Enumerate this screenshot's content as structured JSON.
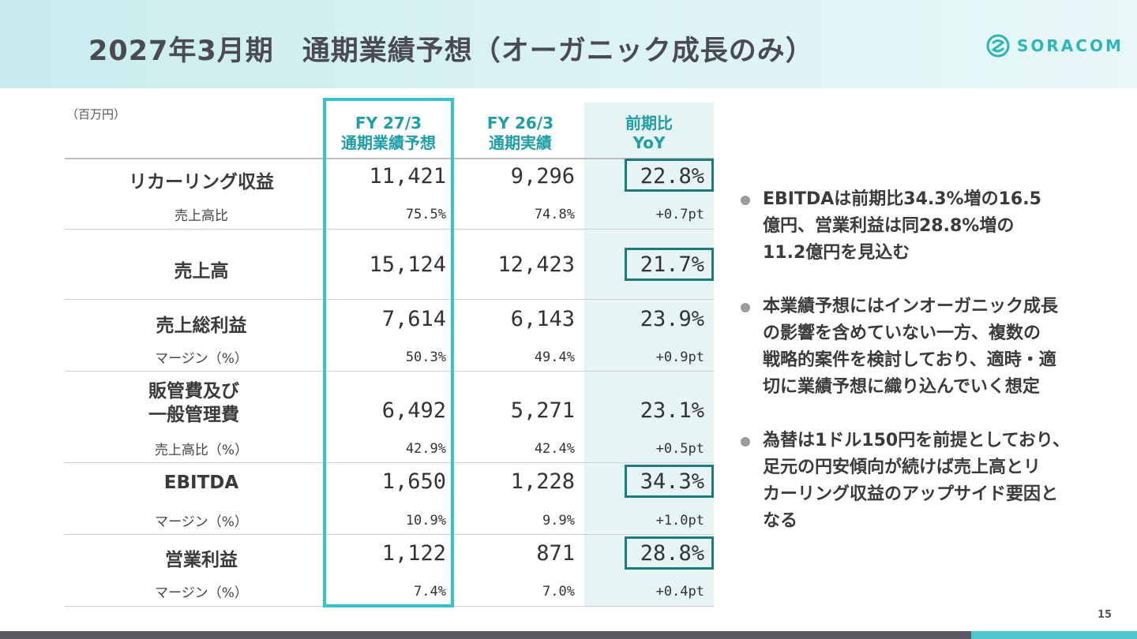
{
  "title": "2027年3月期　通期業績予想（オーガニック成長のみ）",
  "logo": {
    "text": "SORACOM",
    "icon": "soracom-logo-icon",
    "color": "#2fb5b8"
  },
  "unit": "（百万円）",
  "columns": {
    "fy27": {
      "line1": "FY 27/3",
      "line2": "通期業績予想"
    },
    "fy26": {
      "line1": "FY 26/3",
      "line2": "通期実績"
    },
    "yoy": {
      "line1": "前期比",
      "line2": "YoY"
    }
  },
  "rows": {
    "recurring": {
      "label": "リカーリング収益",
      "fy27": "11,421",
      "fy26": "9,296",
      "yoy": "22.8%",
      "sub_label": "売上高比",
      "sub_fy27": "75.5%",
      "sub_fy26": "74.8%",
      "sub_yoy": "+0.7pt"
    },
    "revenue": {
      "label": "売上高",
      "fy27": "15,124",
      "fy26": "12,423",
      "yoy": "21.7%"
    },
    "gross": {
      "label": "売上総利益",
      "fy27": "7,614",
      "fy26": "6,143",
      "yoy": "23.9%",
      "sub_label": "マージン（%）",
      "sub_fy27": "50.3%",
      "sub_fy26": "49.4%",
      "sub_yoy": "+0.9pt"
    },
    "sga": {
      "label_line1": "販管費及び",
      "label_line2": "一般管理費",
      "fy27": "6,492",
      "fy26": "5,271",
      "yoy": "23.1%",
      "sub_label": "売上高比（%）",
      "sub_fy27": "42.9%",
      "sub_fy26": "42.4%",
      "sub_yoy": "+0.5pt"
    },
    "ebitda": {
      "label": "EBITDA",
      "fy27": "1,650",
      "fy26": "1,228",
      "yoy": "34.3%",
      "sub_label": "マージン（%）",
      "sub_fy27": "10.9%",
      "sub_fy26": "9.9%",
      "sub_yoy": "+1.0pt"
    },
    "operating": {
      "label": "営業利益",
      "fy27": "1,122",
      "fy26": "871",
      "yoy": "28.8%",
      "sub_label": "マージン（%）",
      "sub_fy27": "7.4%",
      "sub_fy26": "7.0%",
      "sub_yoy": "+0.4pt"
    }
  },
  "bullets": [
    {
      "lines": [
        "EBITDAは前期比34.3%増の16.5",
        "億円、営業利益は同28.8%増の",
        "11.2億円を見込む"
      ]
    },
    {
      "lines": [
        "本業績予想にはインオーガニック成長",
        "の影響を含めていない一方、複数の",
        "戦略的案件を検討しており、適時・適",
        "切に業績予想に織り込んでいく想定"
      ]
    },
    {
      "lines": [
        "為替は1ドル150円を前提としており、",
        "足元の円安傾向が続けば売上高とリ",
        "カーリング収益のアップサイド要因と",
        "なる"
      ]
    }
  ],
  "page_number": "15",
  "colors": {
    "accent": "#35c2cc",
    "highlight_box": "#1f7a7c",
    "yoy_bg": "#e6f4f4",
    "bottom_bar": "#595962"
  }
}
